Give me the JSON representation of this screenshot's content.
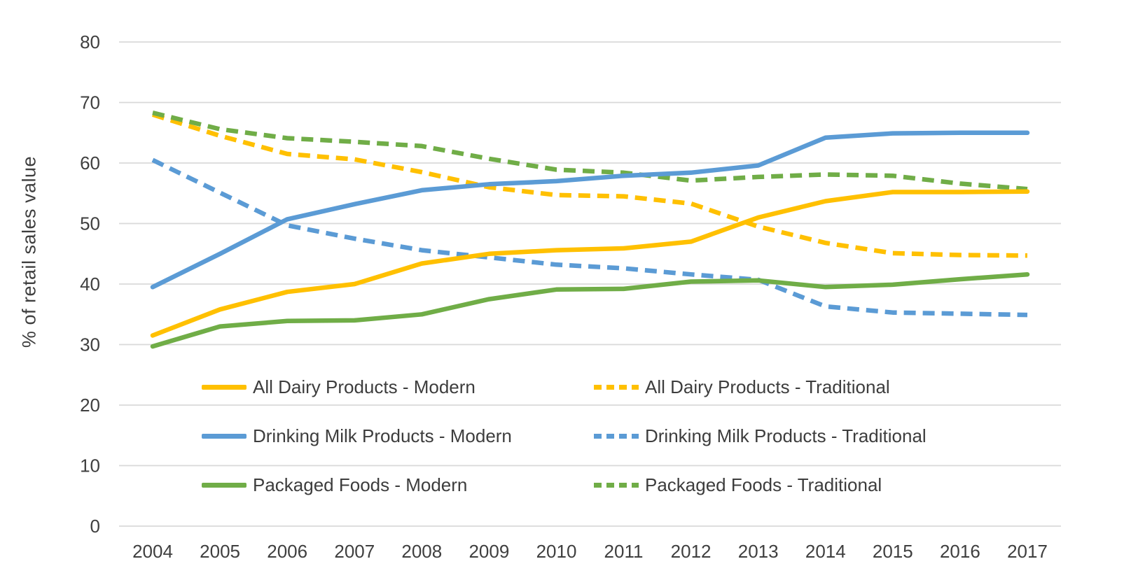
{
  "chart_data": {
    "type": "line",
    "title": "",
    "xlabel": "",
    "ylabel": "% of retail sales value",
    "ylim": [
      0,
      80
    ],
    "yticks": [
      0,
      10,
      20,
      30,
      40,
      50,
      60,
      70,
      80
    ],
    "grid": "horizontal",
    "gridline_color": "#d9d9d9",
    "text_color": "#3f3f3f",
    "legend_position": "inside bottom, two columns, no border",
    "categories": [
      "2004",
      "2005",
      "2006",
      "2007",
      "2008",
      "2009",
      "2010",
      "2011",
      "2012",
      "2013",
      "2014",
      "2015",
      "2016",
      "2017"
    ],
    "series": [
      {
        "name": "All Dairy Products - Modern",
        "color": "#FFC000",
        "style": "solid",
        "values": [
          31.5,
          35.8,
          38.7,
          40.0,
          43.4,
          45.0,
          45.6,
          45.9,
          47.0,
          51.0,
          53.7,
          55.2,
          55.2,
          55.3
        ]
      },
      {
        "name": "All Dairy Products - Traditional",
        "color": "#FFC000",
        "style": "dashed",
        "values": [
          68.0,
          64.5,
          61.5,
          60.6,
          58.5,
          56.0,
          54.7,
          54.5,
          53.3,
          49.5,
          46.8,
          45.1,
          44.8,
          44.7
        ]
      },
      {
        "name": "Drinking Milk Products - Modern",
        "color": "#5B9BD5",
        "style": "solid",
        "values": [
          39.5,
          45.0,
          50.7,
          53.2,
          55.5,
          56.5,
          57.0,
          57.9,
          58.4,
          59.6,
          64.2,
          64.9,
          65.0,
          65.0
        ]
      },
      {
        "name": "Drinking Milk Products - Traditional",
        "color": "#5B9BD5",
        "style": "dashed",
        "values": [
          60.5,
          55.1,
          49.7,
          47.5,
          45.6,
          44.4,
          43.2,
          42.6,
          41.6,
          40.7,
          36.3,
          35.3,
          35.1,
          34.9
        ]
      },
      {
        "name": "Packaged Foods - Modern",
        "color": "#70AD47",
        "style": "solid",
        "values": [
          29.7,
          33.0,
          33.9,
          34.0,
          35.0,
          37.5,
          39.1,
          39.2,
          40.4,
          40.6,
          39.5,
          39.9,
          40.8,
          41.6
        ]
      },
      {
        "name": "Packaged Foods - Traditional",
        "color": "#70AD47",
        "style": "dashed",
        "values": [
          68.3,
          65.6,
          64.1,
          63.5,
          62.8,
          60.7,
          58.9,
          58.4,
          57.1,
          57.7,
          58.1,
          57.9,
          56.6,
          55.7
        ]
      }
    ]
  }
}
